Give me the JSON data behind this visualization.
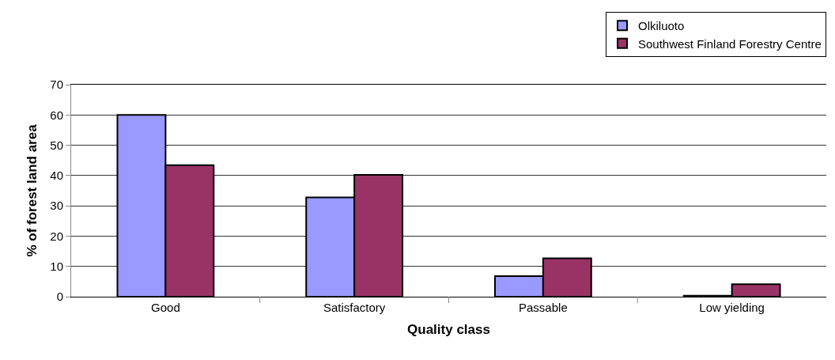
{
  "chart_data": {
    "type": "bar",
    "xlabel": "Quality class",
    "ylabel": "% of forest land area",
    "categories": [
      "Good",
      "Satisfactory",
      "Passable",
      "Low yielding"
    ],
    "series": [
      {
        "name": "Olkiluoto",
        "color": "#9999ff",
        "values": [
          60,
          32.8,
          6.8,
          0.3
        ]
      },
      {
        "name": "Southwest Finland Forestry Centre",
        "color": "#993366",
        "values": [
          43.4,
          40.2,
          12.7,
          4.1
        ]
      }
    ],
    "ylim": [
      0,
      70
    ],
    "yticks": [
      0,
      10,
      20,
      30,
      40,
      50,
      60,
      70
    ],
    "grid": "y",
    "legend": "top right"
  }
}
